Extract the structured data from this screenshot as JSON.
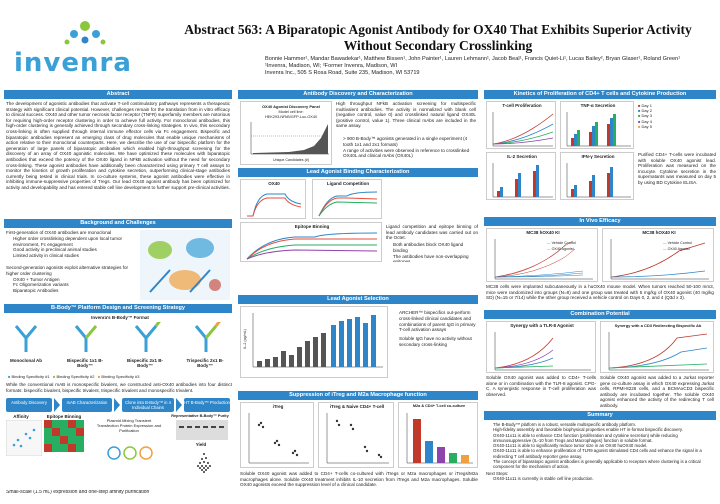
{
  "header": {
    "logo_text": "invenra",
    "title_line1": "Abstract 563:  A Biparatopic Agonist Antibody for OX40 That Exhibits Superior Activity",
    "title_line2": "Without Secondary Crosslinking",
    "authors_line1": "Bonnie Hammer¹, Mandar Bawadekar¹, Matthew Bissen¹, John Painter¹, Lauren Lehmann¹, Jacob Beal¹, Francis Quiet-Li¹, Lucas Bailey², Bryan Glaser¹, Roland Green¹",
    "authors_line2": "¹Invenra, Madison, WI; ²Former Invenra, Madison, WI",
    "authors_line3": "Invenra Inc., 505 S Rosa Road, Suite 235, Madison, WI 53719"
  },
  "abstract": {
    "heading": "Abstract",
    "body": "The development of agonistic antibodies that activate T-cell costimulatory pathways represents a therapeutic strategy with significant clinical potential. However, challenges remain for the translation from in vitro efficacy to clinical success. OX40 and other tumor necrosis factor receptor (TNFR) superfamily members are notorious for requiring high-order receptor clustering in order to achieve full activity. For monoclonal antibodies, this high-order clustering is generally achieved through secondary cross-linking strategies. In vivo, this secondary cross-linking is often supplied through internal immune effector cells via Fc engagement. Bispecific and biparatopic antibodies represent an emerging class of drug molecules that enable unique mechanisms of action relative to their monoclonal counterparts. Here, we describe the use of our bispecific platform for the generation of large panels of biparatopic antibodies which enabled high-throughput screening for the discovery of an array of OX40 agonistic molecules. We have optimized these molecules with biparatopic antibodies that exceed the potency of the OX40 ligand in NFkB activation without the need for secondary cross-linking. These agonist antibodies have additionally been characterized using primary T cell assays to monitor the kinetics of growth proliferation and cytokine secretion, outperforming clinical-stage antibodies currently being tested in clinical trials. In co-culture systems, these agonist antibodies were effective in inhibiting immune-suppressive properties of Tregs. Our lead OX40 agonist antibody has been optimized for activity and developability and has entered stable cell line development to further support pre-clinical activities."
  },
  "background": {
    "heading": "Background and Challenges",
    "intro1": "First-generation of OX40 antibodies are monoclonal",
    "bullets1": [
      "Higher order crosslinking dependent upon local tumor environment, Fc engagement",
      "Good activity in preclinical animal studies",
      "Limited activity in clinical studies"
    ],
    "intro2": "Second-generation agonists exploit alternative strategies for higher order clustering",
    "bullets2": [
      "OX40 + Tumor Antigen",
      "Fc Oligomerization variants",
      "Biparatopic Antibodies"
    ]
  },
  "platform": {
    "heading": "B-Body™ Platform Design and Screening Strategy",
    "top_label": "Invenra's B-Body™ Format",
    "formats": [
      "Monoclonal Ab",
      "Bispecific 1x1 B-Body™",
      "Bispecific 2x1 B-Body™",
      "Trispecific 2x1 B-Body™"
    ],
    "legend": [
      "Binding Specificity #1",
      "Binding Specificity #2",
      "Binding Specificity #3"
    ],
    "body": "While the conventional mAB is monospecific bivalent, we constructed anti-OX40 antibodies into four distinct formats: bispecific bivalent, bispecific trivalent, trispecific trivalent and monospecific trivalent.",
    "flow": [
      "Antibody Discovery",
      "mAB Characterization",
      "Clone into B-Body™ in 4 Individual Chains",
      "HT B-Body™ Production"
    ],
    "labels": [
      "Affinity",
      "Epitope Binning",
      "Plasmid Mixing Transient Transfection Protein Expression and Purification",
      "Representative B-Body™ Purity",
      "Yield"
    ],
    "footer": "Small-scale (1.5 mL) expression and one-step affinity purification"
  },
  "discovery": {
    "heading": "Antibody Discovery and Characterization",
    "chart_title": "OX40 Agonist Discovery Panel",
    "chart_sub1": "Model cell line:",
    "chart_sub2": "HEK293-NFkB/GFP-Luc-OX40",
    "xlabel": "Unique Candidates (#)",
    "ylabel": "Normalized NF-kB activation",
    "text": "High throughput NFkB activation screening for multispecific multivalent antibodies. The activity is normalized with blank cell (negative control, value 0) and crosslinked natural ligand OX40L (positive control, value 1). Three clinical mAbs are included in the same assay.",
    "bullets": [
      "> 900 B-Body™ agonists generated in a single experiment (4 tooth 1x1 and 2x1 formats)",
      "A range of activities were observed in reference to crosslinked OX40L and clinical mAbs (OX40L)"
    ]
  },
  "binding": {
    "heading": "Lead Agonist Binding Characterization",
    "panel1": "OX40",
    "panel2": "Ligand Competition",
    "panel3": "Epitope Binning",
    "text": "Ligand competition and epitope binning of lead antibody candidates was carried out on the Octet.",
    "bullets": [
      "Both antibodies block OX40 ligand binding",
      "The antibodies have non-overlapping epitopes"
    ]
  },
  "selection": {
    "heading": "Lead Agonist Selection",
    "ylabel": "IL-2 (pg/mL)",
    "bullets": [
      "ARCHER™ bispecifics out-perform cross-linked clinical candidates and combinations of parent IgG in primary T-cell activation assays",
      "Soluble IgG have no activity without secondary cross-linking"
    ]
  },
  "suppression": {
    "heading": "Suppression of iTreg and M2a Macrophage function",
    "panel1": "iTreg",
    "panel2": "iTreg & Naive CD4+ T-cell",
    "panel3": "M2a & CD4+ T-cell co-culture",
    "body": "Soluble OX40 agonist was added to CD4+ T-cells co-cultured with iTregs or M2a macrophages or iTregs/M2a macrophages alone. Soluble OX40 treatment inhibits IL-10 secretion from iTregs and M2a macrophages. Soluble OX40 agonists exceed the suppression level of a clinical candidate."
  },
  "kinetics": {
    "heading": "Kinetics of Proliferation of CD4+ T cells and Cytokine Production",
    "panel1": "T-cell Proliferation",
    "panel2": "TNF-α Secretion",
    "panel3": "IL-2 Secretion",
    "panel4": "IFN-γ Secretion",
    "legend": [
      "Day 1",
      "Day 2",
      "Day 3",
      "Day 4",
      "Day 5"
    ],
    "text": "Purified CD4+ T-cells were incubated with soluble OX40 agonist lead. Proliferation was measured on the Incucyte. Cytokine secretion in the supernatants was measured on day 5 by using BD Cytokine ELISA."
  },
  "invivo": {
    "heading": "In Vivo Efficacy",
    "panel1": "MC38 hOX40 KI",
    "panel2": "MC38 hOX40 KI",
    "legend1": [
      "Vehicle Control",
      "OX40 Agonist"
    ],
    "legend2": [
      "Vehicle Control",
      "OX40 Agonist"
    ],
    "text": "MC38 cells were implanted subcutaneously in a huOX40 mouse model. When tumors reached 50-100 mm3, mice were randomized into groups (N=8) and one group was treated with 5 mg/kg of OX40 agonist (40 mg/kg SD) (N=15 or 7/14) while the other group received a vehicle control on Days 0, 2, and 4 (Q3d x 3)."
  },
  "combination": {
    "heading": "Combination Potential",
    "panel1": "Synergy with a TLR-8 Agonist",
    "panel2": "Synergy with a CD3 Redirecting Bispecific Ab",
    "text_left": "Soluble OX40 agonist was added to CD4+ T-cells alone or in combination with the TLR-8 agonist. CPG-C. A synergistic response in T-cell proliferation was observed.",
    "text_right": "Soluble OX40 agonist was added to a Jurkat reporter gene co-culture assay in which OX40 expressing Jurkat cells, RPMI-8226 cells, and a BCMAxCD3 bispecific antibody are incubated together. The soluble OX40 agonist enhanced the activity of the redirecting T cell antibody."
  },
  "summary": {
    "heading": "Summary",
    "bullets": [
      "The B-Body™ platform is a robust, versatile multispecific antibody platform.",
      "High-fidelity assembly and favorable biophysical properties enable HT in-format bispecific discovery.",
      "OX40-11x11 is able to enhance CD4 function (proliferation and cytokine secretion) while reducing immunosuppressive (IL-10 from Tregs and Macrophages) function in soluble format.",
      "OX40-11x11 is able to significantly reduce tumor size in an OX40 huOX40 model.",
      "OX40-11x11 is able to enhance proliferation of TLR9 agonist stimulated CD4 cells and enhance the signal in a redirecting T cell antibody reporter gene assay.",
      "The concept of biparatopic agonist antibodies is generally applicable to receptors where clustering is a critical component for the mechanism of action."
    ],
    "next_steps_label": "Next Steps:",
    "next_steps": [
      "OX40-11x11 is currently in stable cell line production."
    ]
  }
}
